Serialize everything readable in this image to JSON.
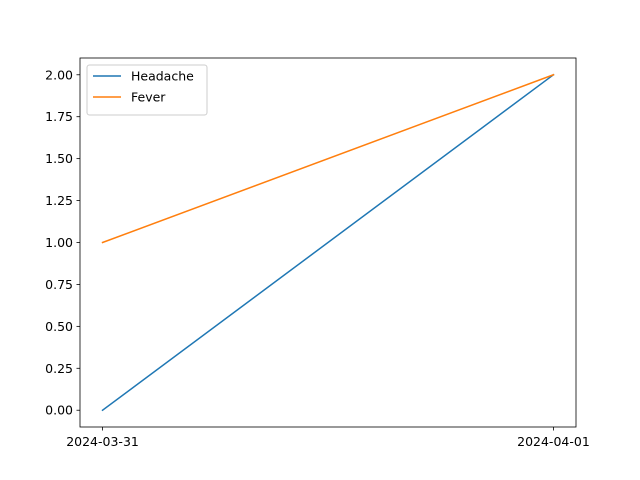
{
  "chart_data": {
    "type": "line",
    "title": "",
    "xlabel": "",
    "ylabel": "",
    "x": [
      "2024-03-31",
      "2024-04-01"
    ],
    "series": [
      {
        "name": "Headache",
        "values": [
          0,
          2
        ],
        "color": "#1f77b4"
      },
      {
        "name": "Fever",
        "values": [
          1,
          2
        ],
        "color": "#ff7f0e"
      }
    ],
    "ylim": [
      -0.1,
      2.1
    ],
    "yticks": [
      "0.00",
      "0.25",
      "0.50",
      "0.75",
      "1.00",
      "1.25",
      "1.50",
      "1.75",
      "2.00"
    ],
    "xticks": [
      "2024-03-31",
      "2024-04-01"
    ],
    "grid": false,
    "legend_position": "top-left"
  }
}
